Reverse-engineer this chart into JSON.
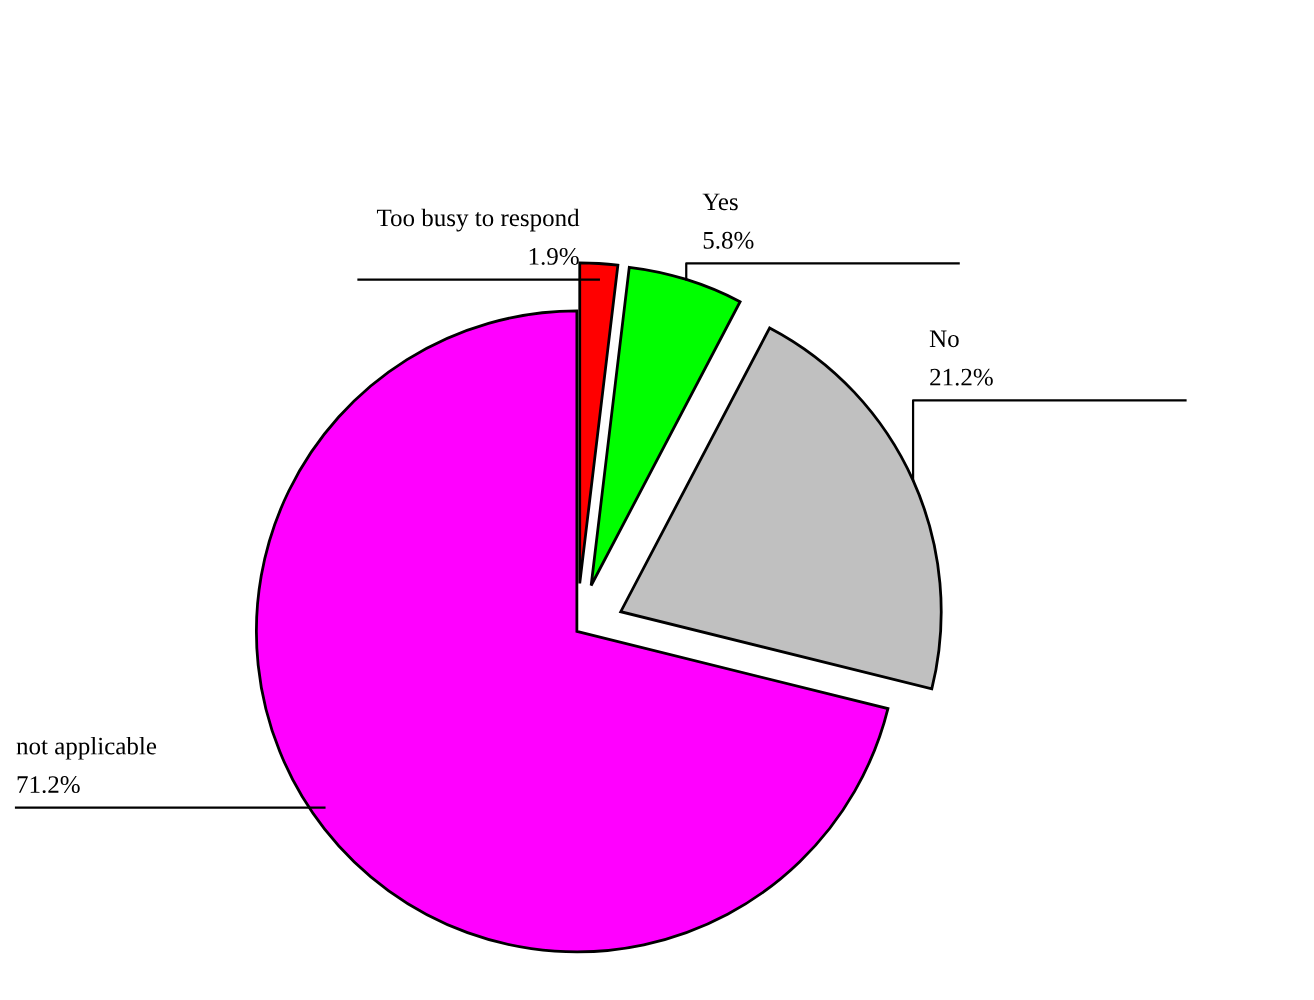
{
  "chart_data": {
    "type": "pie",
    "categories": [
      "Too busy to respond",
      "Yes",
      "No",
      "not applicable"
    ],
    "values": [
      1.9,
      5.8,
      21.2,
      71.2
    ],
    "colors": [
      "#ff0000",
      "#00ff00",
      "#c0c0c0",
      "#ff00ff"
    ],
    "value_labels": [
      "1.9%",
      "5.8%",
      "21.2%",
      "71.2%"
    ],
    "legend": false
  }
}
